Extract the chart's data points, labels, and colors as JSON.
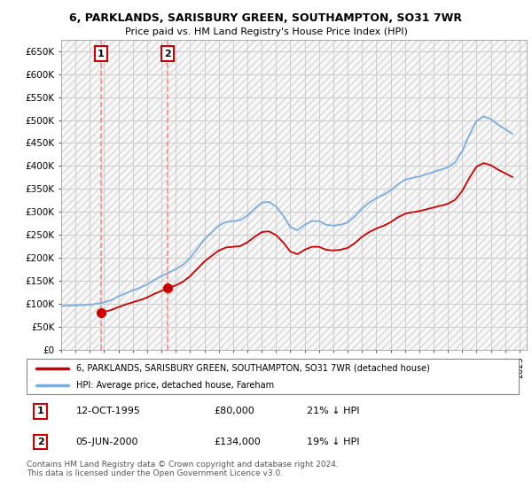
{
  "title_line1": "6, PARKLANDS, SARISBURY GREEN, SOUTHAMPTON, SO31 7WR",
  "title_line2": "Price paid vs. HM Land Registry's House Price Index (HPI)",
  "ylim": [
    0,
    675000
  ],
  "xlim_start": 1993.0,
  "xlim_end": 2025.5,
  "ytick_vals": [
    0,
    50000,
    100000,
    150000,
    200000,
    250000,
    300000,
    350000,
    400000,
    450000,
    500000,
    550000,
    600000,
    650000
  ],
  "ytick_labels": [
    "£0",
    "£50K",
    "£100K",
    "£150K",
    "£200K",
    "£250K",
    "£300K",
    "£350K",
    "£400K",
    "£450K",
    "£500K",
    "£550K",
    "£600K",
    "£650K"
  ],
  "sale1_x": 1995.78,
  "sale1_y": 80000,
  "sale2_x": 2000.43,
  "sale2_y": 134000,
  "property_color": "#cc0000",
  "hpi_color": "#7aade0",
  "dashed_line_color": "#ff8888",
  "legend_property": "6, PARKLANDS, SARISBURY GREEN, SOUTHAMPTON, SO31 7WR (detached house)",
  "legend_hpi": "HPI: Average price, detached house, Fareham",
  "table_row1_num": "1",
  "table_row1_date": "12-OCT-1995",
  "table_row1_price": "£80,000",
  "table_row1_hpi": "21% ↓ HPI",
  "table_row2_num": "2",
  "table_row2_date": "05-JUN-2000",
  "table_row2_price": "£134,000",
  "table_row2_hpi": "19% ↓ HPI",
  "footnote": "Contains HM Land Registry data © Crown copyright and database right 2024.\nThis data is licensed under the Open Government Licence v3.0.",
  "hpi_x": [
    1993.0,
    1993.5,
    1994.0,
    1994.5,
    1995.0,
    1995.5,
    1996.0,
    1996.5,
    1997.0,
    1997.5,
    1998.0,
    1998.5,
    1999.0,
    1999.5,
    2000.0,
    2000.5,
    2001.0,
    2001.5,
    2002.0,
    2002.5,
    2003.0,
    2003.5,
    2004.0,
    2004.5,
    2005.0,
    2005.5,
    2006.0,
    2006.5,
    2007.0,
    2007.5,
    2008.0,
    2008.5,
    2009.0,
    2009.5,
    2010.0,
    2010.5,
    2011.0,
    2011.5,
    2012.0,
    2012.5,
    2013.0,
    2013.5,
    2014.0,
    2014.5,
    2015.0,
    2015.5,
    2016.0,
    2016.5,
    2017.0,
    2017.5,
    2018.0,
    2018.5,
    2019.0,
    2019.5,
    2020.0,
    2020.5,
    2021.0,
    2021.5,
    2022.0,
    2022.5,
    2023.0,
    2023.5,
    2024.0,
    2024.5
  ],
  "hpi_y": [
    95000,
    96000,
    96500,
    97000,
    98000,
    100000,
    103000,
    108000,
    116000,
    123000,
    129000,
    135000,
    142000,
    152000,
    160000,
    168000,
    175000,
    185000,
    200000,
    220000,
    240000,
    255000,
    270000,
    278000,
    280000,
    282000,
    292000,
    307000,
    320000,
    322000,
    312000,
    292000,
    267000,
    260000,
    272000,
    280000,
    280000,
    272000,
    270000,
    272000,
    277000,
    290000,
    307000,
    320000,
    330000,
    337000,
    347000,
    360000,
    370000,
    374000,
    377000,
    382000,
    387000,
    392000,
    397000,
    408000,
    432000,
    468000,
    498000,
    508000,
    502000,
    490000,
    480000,
    470000
  ],
  "prop_x": [
    1995.78,
    1996.0,
    1996.5,
    1997.0,
    1997.5,
    1998.0,
    1998.5,
    1999.0,
    1999.5,
    2000.0,
    2000.43,
    2000.5,
    2001.0,
    2001.5,
    2002.0,
    2002.5,
    2003.0,
    2003.5,
    2004.0,
    2004.5,
    2005.0,
    2005.5,
    2006.0,
    2006.5,
    2007.0,
    2007.5,
    2008.0,
    2008.5,
    2009.0,
    2009.5,
    2010.0,
    2010.5,
    2011.0,
    2011.5,
    2012.0,
    2012.5,
    2013.0,
    2013.5,
    2014.0,
    2014.5,
    2015.0,
    2015.5,
    2016.0,
    2016.5,
    2017.0,
    2017.5,
    2018.0,
    2018.5,
    2019.0,
    2019.5,
    2020.0,
    2020.5,
    2021.0,
    2021.5,
    2022.0,
    2022.5,
    2023.0,
    2023.5,
    2024.0,
    2024.5
  ],
  "prop_y": [
    80000,
    82400,
    86400,
    92800,
    98400,
    103200,
    108000,
    113600,
    121600,
    128000,
    134000,
    134400,
    140000,
    148000,
    160000,
    176000,
    192000,
    204000,
    216000,
    222400,
    224000,
    225600,
    233600,
    245600,
    256000,
    257600,
    249600,
    233600,
    213600,
    208000,
    217600,
    224000,
    224000,
    217600,
    216000,
    217600,
    221600,
    232000,
    245600,
    256000,
    264000,
    269600,
    277600,
    288000,
    296000,
    299200,
    301600,
    305600,
    309600,
    313600,
    317600,
    326400,
    345600,
    374400,
    398400,
    406400,
    401600,
    392000,
    384000,
    376000
  ]
}
